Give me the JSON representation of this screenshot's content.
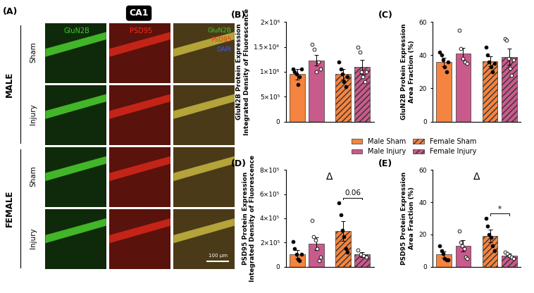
{
  "panel_a": {
    "label": "(A)",
    "region": "CA1",
    "groups": [
      "MALE",
      "FEMALE"
    ],
    "conditions": [
      "Sham",
      "Injury"
    ],
    "channels": [
      {
        "name": "GluN2B",
        "color": "#39d12a"
      },
      {
        "name": "PSD95",
        "color": "#ff2a1a"
      }
    ],
    "merge": [
      {
        "name": "GluN2B",
        "color": "#39d12a"
      },
      {
        "name": "PSD95",
        "color": "#ff2a1a"
      },
      {
        "name": "DAPI",
        "color": "#3a5cff"
      }
    ],
    "scale_bar": "100 µm"
  },
  "legend_entries": [
    "Male Sham",
    "Male Injury",
    "Female Sham",
    "Female Injury"
  ],
  "chart_data": [
    {
      "type": "bar",
      "panel": "(B)",
      "ylabel": "GluN2B Protein Expression\nIntegrated Density of Fluorescence",
      "categories": [
        "Male Sham",
        "Male Injury",
        "Female Sham",
        "Female Injury"
      ],
      "colors": [
        "#f4843f",
        "#c95a8c",
        "#f4843f",
        "#c95a8c"
      ],
      "values": [
        950000,
        1230000,
        950000,
        1100000
      ],
      "errors": [
        100000,
        110000,
        110000,
        140000
      ],
      "points": [
        [
          1050000,
          1000000,
          950000,
          750000,
          900000,
          1050000
        ],
        [
          1550000,
          1450000,
          1000000,
          1200000,
          1050000
        ],
        [
          1200000,
          1050000,
          950000,
          800000,
          700000,
          900000
        ],
        [
          1500000,
          1400000,
          1000000,
          900000,
          800000,
          1000000
        ]
      ],
      "ylim": [
        0,
        2000000
      ],
      "yticks": [
        0,
        {
          "value": 500000,
          "label": "5×10⁵"
        },
        {
          "value": 1000000,
          "label": "1×10⁶"
        },
        {
          "value": 1500000,
          "label": "1.5×10⁶"
        },
        {
          "value": 2000000,
          "label": "2×10⁶"
        }
      ],
      "tick_labels": "y"
    },
    {
      "type": "bar",
      "panel": "(C)",
      "ylabel": "GluN2B Protein Expression\nArea Fraction (%)",
      "categories": [
        "Male Sham",
        "Male Injury",
        "Female Sham",
        "Female Injury"
      ],
      "colors": [
        "#f4843f",
        "#c95a8c",
        "#f4843f",
        "#c95a8c"
      ],
      "values": [
        36,
        41,
        36.5,
        39
      ],
      "errors": [
        2.5,
        3.5,
        3,
        5
      ],
      "points": [
        [
          42,
          40,
          37,
          33,
          30,
          36
        ],
        [
          55,
          44,
          38,
          36,
          35
        ],
        [
          45,
          40,
          36,
          33,
          30,
          35
        ],
        [
          50,
          49,
          38,
          32,
          28,
          37
        ]
      ],
      "ylim": [
        0,
        60
      ],
      "yticks": [
        0,
        20,
        40,
        60
      ],
      "tick_labels": "y"
    },
    {
      "type": "bar",
      "panel": "(D)",
      "ylabel": "PSD95 Protein Expression\nIntegrated Density of Fluorescence",
      "categories": [
        "Male Sham",
        "Male Injury",
        "Female Sham",
        "Female Injury"
      ],
      "colors": [
        "#f4843f",
        "#c95a8c",
        "#f4843f",
        "#c95a8c"
      ],
      "values": [
        105000,
        190000,
        295000,
        100000
      ],
      "errors": [
        35000,
        55000,
        80000,
        20000
      ],
      "points": [
        [
          210000,
          150000,
          100000,
          60000,
          50000,
          100000
        ],
        [
          380000,
          250000,
          220000,
          150000,
          50000,
          80000
        ],
        [
          530000,
          430000,
          300000,
          250000,
          150000,
          120000
        ],
        [
          140000,
          100000,
          90000,
          80000
        ]
      ],
      "ylim": [
        0,
        800000
      ],
      "yticks": [
        0,
        {
          "value": 200000,
          "label": "2×10⁵"
        },
        {
          "value": 400000,
          "label": "4×10⁵"
        },
        {
          "value": 600000,
          "label": "6×10⁵"
        },
        {
          "value": 800000,
          "label": "8×10⁵"
        }
      ],
      "main_effect": "Δ",
      "comparison": {
        "bars": [
          2,
          3
        ],
        "label": "0.06"
      },
      "tick_labels": "y"
    },
    {
      "type": "bar",
      "panel": "(E)",
      "ylabel": "PSD95 Protein Expression\nArea Fraction (%)",
      "categories": [
        "Male Sham",
        "Male Injury",
        "Female Sham",
        "Female Injury"
      ],
      "colors": [
        "#f4843f",
        "#c95a8c",
        "#f4843f",
        "#c95a8c"
      ],
      "values": [
        7.5,
        13,
        19,
        7
      ],
      "errors": [
        2,
        3.5,
        4,
        1
      ],
      "points": [
        [
          13,
          10,
          8,
          5,
          4,
          4
        ],
        [
          22,
          15,
          13,
          11,
          6,
          5
        ],
        [
          30,
          25,
          20,
          18,
          13,
          10
        ],
        [
          9,
          8,
          7,
          6,
          5
        ]
      ],
      "ylim": [
        0,
        60
      ],
      "yticks": [
        0,
        20,
        40,
        60
      ],
      "main_effect": "Δ",
      "comparison": {
        "bars": [
          2,
          3
        ],
        "label": "*"
      },
      "tick_labels": "y"
    }
  ]
}
